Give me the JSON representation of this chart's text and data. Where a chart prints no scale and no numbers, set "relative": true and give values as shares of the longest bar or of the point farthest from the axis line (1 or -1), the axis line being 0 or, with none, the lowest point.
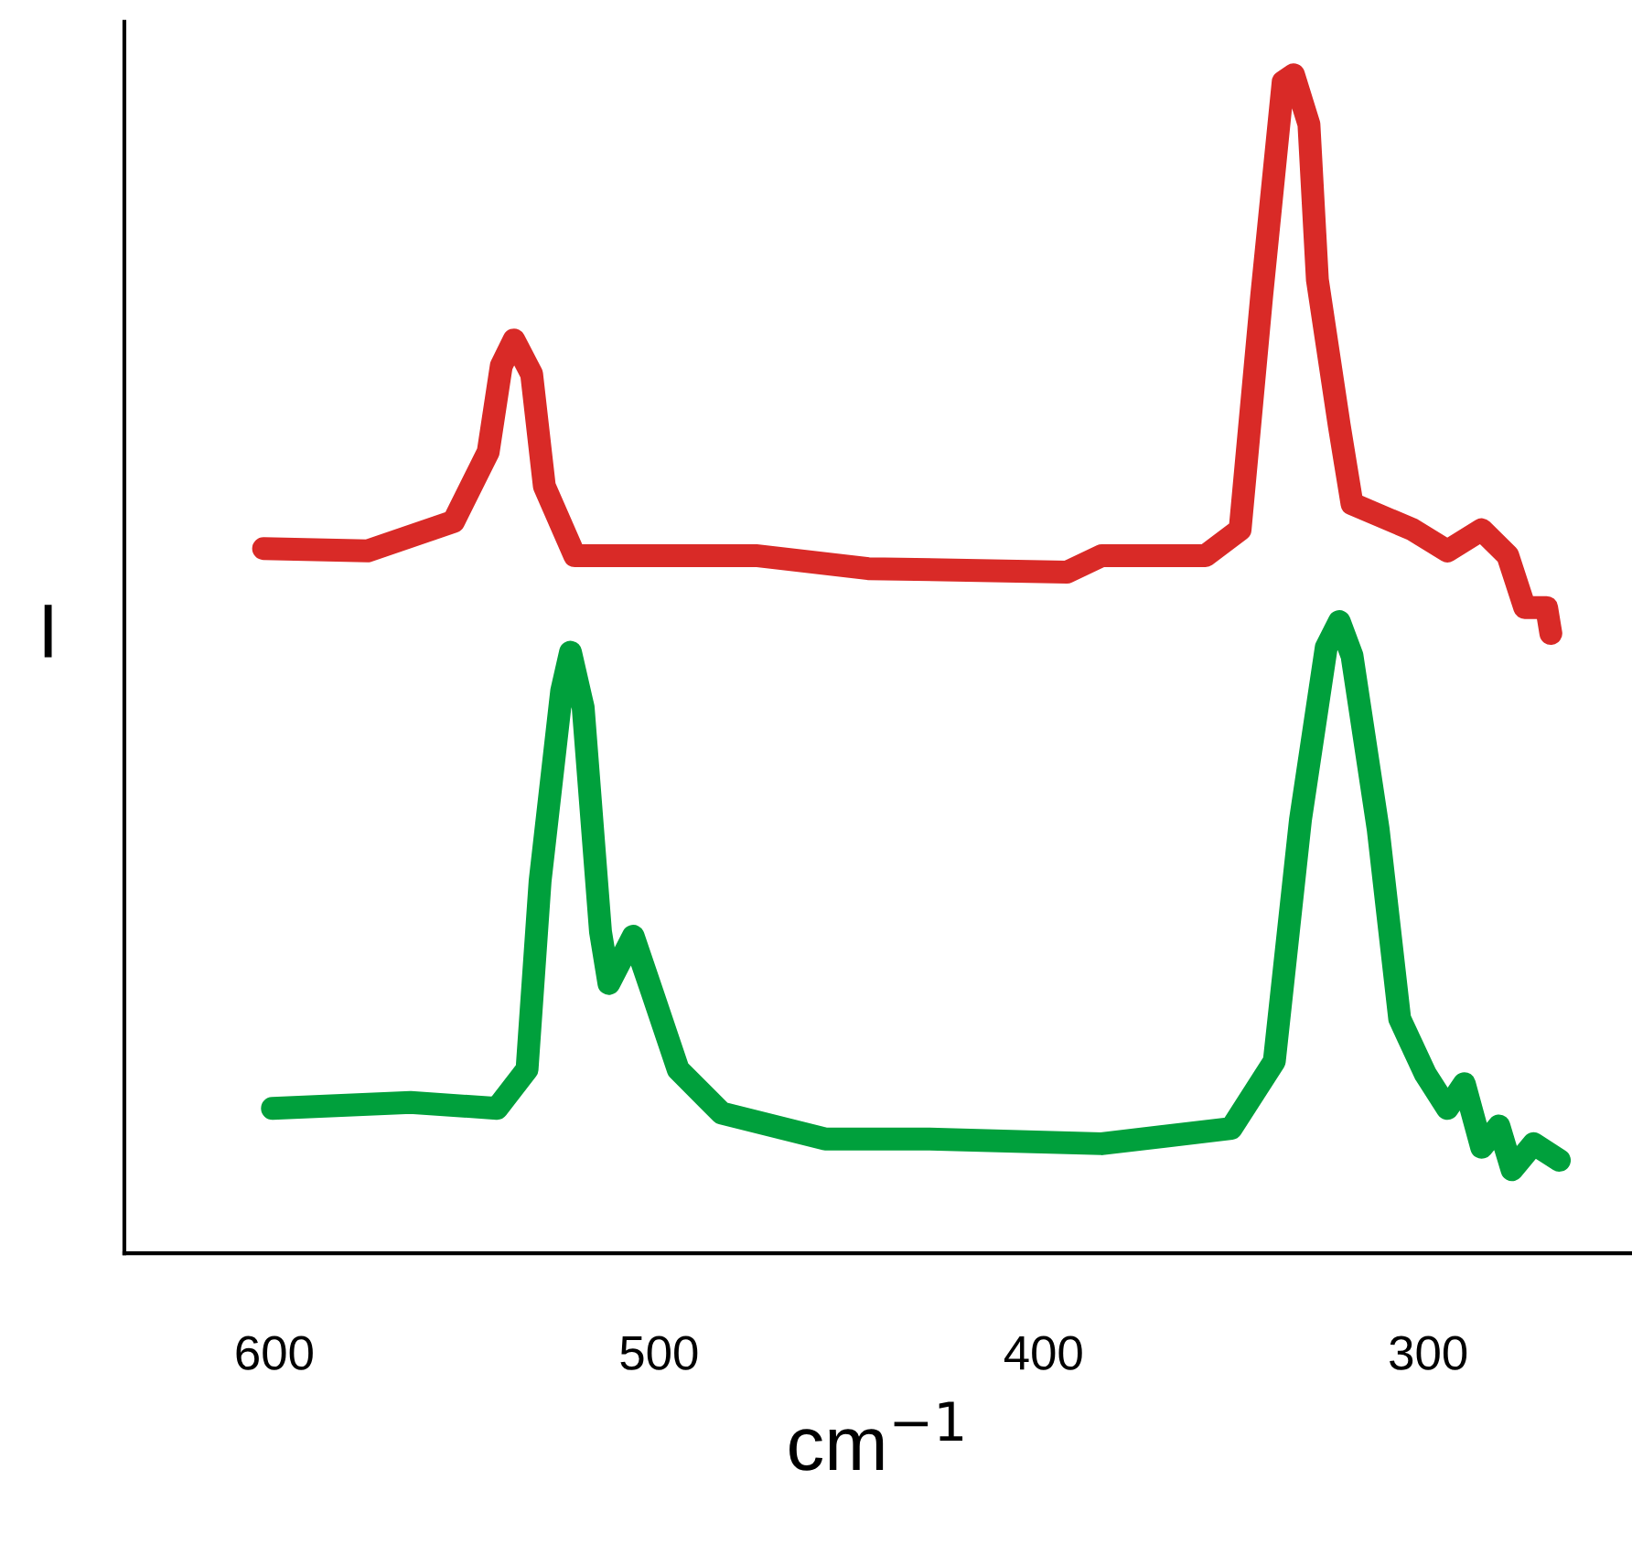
{
  "chart_data": {
    "type": "line",
    "relative": true,
    "xlabel": "cm$^{−1}$",
    "ylabel": "I",
    "xlim": [
      639,
      247
    ],
    "xticks": [
      600,
      500,
      400,
      300
    ],
    "grid": false,
    "line_style": "solid",
    "series": [
      {
        "color": "#d92a27",
        "x": [
          602.8,
          575.8,
          553.4,
          544.4,
          541.0,
          537.7,
          533.1,
          529.8,
          521.9,
          474.8,
          445.6,
          393.9,
          384.9,
          357.9,
          348.9,
          343.3,
          337.7,
          335.0,
          331.0,
          328.8,
          323.1,
          319.8,
          304.0,
          295.0,
          286.1,
          279.3,
          274.9,
          269.2,
          268.1
        ],
        "values": [
          0.598,
          0.596,
          0.621,
          0.68,
          0.753,
          0.775,
          0.746,
          0.651,
          0.592,
          0.592,
          0.581,
          0.578,
          0.592,
          0.592,
          0.614,
          0.812,
          0.994,
          1.0,
          0.958,
          0.826,
          0.702,
          0.636,
          0.614,
          0.596,
          0.614,
          0.592,
          0.548,
          0.548,
          0.526
        ]
      },
      {
        "color": "#00a03c",
        "x": [
          600.5,
          564.6,
          542.1,
          534.3,
          530.9,
          525.3,
          523.0,
          519.7,
          515.2,
          513.0,
          506.7,
          501.7,
          495.0,
          483.7,
          456.8,
          429.8,
          384.9,
          351.2,
          340.0,
          333.2,
          326.5,
          323.1,
          319.8,
          313.0,
          307.4,
          300.7,
          295.0,
          290.6,
          286.1,
          281.6,
          278.2,
          272.6,
          265.9
        ],
        "values": [
          0.123,
          0.128,
          0.123,
          0.156,
          0.316,
          0.477,
          0.51,
          0.463,
          0.273,
          0.229,
          0.269,
          0.221,
          0.156,
          0.119,
          0.097,
          0.097,
          0.093,
          0.106,
          0.163,
          0.368,
          0.514,
          0.536,
          0.507,
          0.36,
          0.199,
          0.152,
          0.123,
          0.144,
          0.09,
          0.108,
          0.071,
          0.093,
          0.079
        ]
      }
    ]
  }
}
